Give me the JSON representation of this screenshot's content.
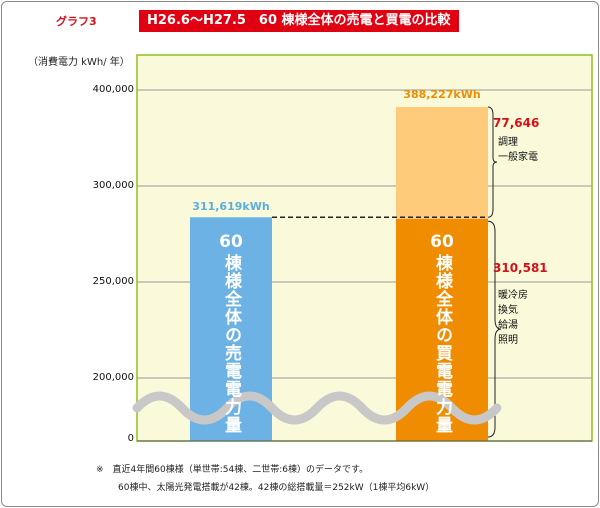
{
  "graph_no": "グラフ3",
  "title": "H26.6～H27.5　60 棟様全体の売電と買電の比較",
  "y_unit": "（消費電力 kWh/ 年）",
  "colors": {
    "sell": "#6cb2e4",
    "buy_bottom": "#f08c00",
    "buy_top": "#fdcb7a",
    "plot_bg": "#fafadb",
    "plot_border": "#8dc21f",
    "sell_label": "#5aaee0",
    "buy_label": "#f08c00",
    "red": "#d4101a"
  },
  "chart_data": {
    "type": "bar",
    "title": "H26.6～H27.5　60 棟様全体の売電と買電の比較",
    "ylabel": "（消費電力 kWh/ 年）",
    "y_ticks": [
      "400,000",
      "300,000",
      "250,000",
      "200,000",
      "0"
    ],
    "axis_break": "below 200,000",
    "bars": [
      {
        "category": "60棟様全体の売電電力量",
        "label_num": "60",
        "label_text": "棟様全体の売電電力量",
        "value": 311619,
        "value_label": "311,619kWh"
      },
      {
        "category": "60棟様全体の買電電力量",
        "label_num": "60",
        "label_text": "棟様全体の買電電力量",
        "value": 388227,
        "value_label": "388,227kWh",
        "segments": [
          {
            "value": 310581,
            "value_label": "310,581",
            "desc": [
              "暖冷房",
              "換気",
              "給湯",
              "照明"
            ]
          },
          {
            "value": 77646,
            "value_label": "77,646",
            "desc": [
              "調理",
              "一般家電"
            ]
          }
        ]
      }
    ]
  },
  "notes": [
    "※　直近4年間60棟様（単世帯:54棟、二世帯:6棟）のデータです。",
    "60棟中、太陽光発電搭載が42棟。42棟の総搭載量＝252kW（1棟平均6kW）"
  ]
}
